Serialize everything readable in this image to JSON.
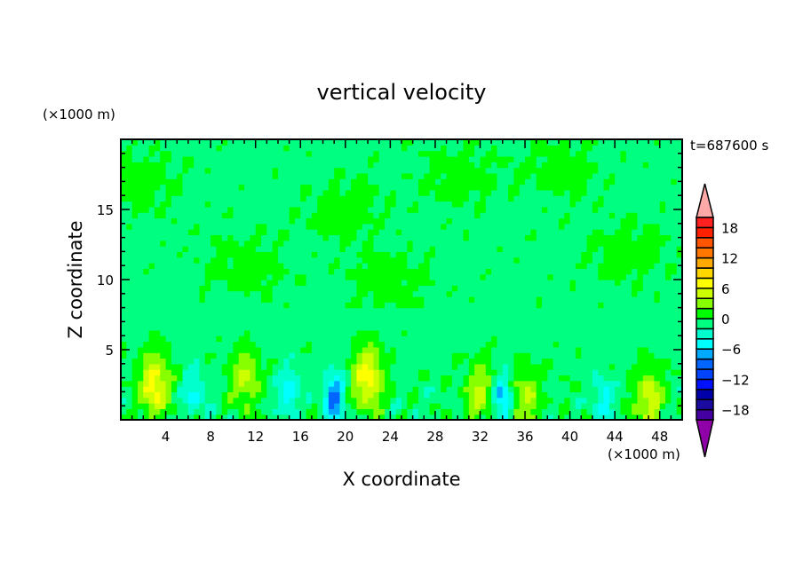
{
  "chart_data": {
    "type": "heatmap",
    "subtype": "filled-contour",
    "title": "vertical velocity",
    "xlabel": "X coordinate",
    "ylabel": "Z coordinate",
    "x_unit": "(×1000 m)",
    "y_unit": "(×1000 m)",
    "time_label": "t=687600 s",
    "xlim": [
      0,
      50
    ],
    "ylim": [
      0,
      20
    ],
    "x_ticks": [
      4,
      8,
      12,
      16,
      20,
      24,
      28,
      32,
      36,
      40,
      44,
      48
    ],
    "y_ticks": [
      5,
      10,
      15
    ],
    "colorbar": {
      "levels": [
        -20,
        20
      ],
      "step": 2,
      "tick_labels": [
        "18",
        "12",
        "6",
        "0",
        "-6",
        "-12",
        "-18"
      ],
      "tick_values": [
        18,
        12,
        6,
        0,
        -6,
        -12,
        -18
      ],
      "colors_low_to_high": [
        "#4400a0",
        "#1a0aa0",
        "#0000aa",
        "#0011ff",
        "#0044ff",
        "#0066ff",
        "#00aaff",
        "#00ffff",
        "#00ffcc",
        "#00ff80",
        "#00ff00",
        "#88ff00",
        "#ccff00",
        "#ffff00",
        "#ffd700",
        "#ffaa00",
        "#ff7700",
        "#ff5500",
        "#ff2000",
        "#ff2020"
      ],
      "under_color": "#9000a8",
      "over_color": "#ffa8a8"
    },
    "updraft_cores": [
      {
        "x": 3,
        "z": 2.5,
        "peak": 8
      },
      {
        "x": 11,
        "z": 3,
        "peak": 5
      },
      {
        "x": 22,
        "z": 3,
        "peak": 8
      },
      {
        "x": 32,
        "z": 2,
        "peak": 5
      },
      {
        "x": 36,
        "z": 1.5,
        "peak": 5
      },
      {
        "x": 47,
        "z": 1.5,
        "peak": 6
      }
    ],
    "downdraft_cores": [
      {
        "x": 6.5,
        "z": 2,
        "peak": -4
      },
      {
        "x": 15,
        "z": 2,
        "peak": -5
      },
      {
        "x": 19,
        "z": 1.5,
        "peak": -8
      },
      {
        "x": 34,
        "z": 1.5,
        "peak": -7
      },
      {
        "x": 43,
        "z": 1.5,
        "peak": -4
      }
    ],
    "upper_positive_regions": [
      {
        "x": 30,
        "z": 17.5
      },
      {
        "x": 45,
        "z": 12
      },
      {
        "x": 24,
        "z": 10
      },
      {
        "x": 11,
        "z": 11
      },
      {
        "x": 2,
        "z": 17
      },
      {
        "x": 20,
        "z": 15
      },
      {
        "x": 39,
        "z": 18
      }
    ]
  }
}
